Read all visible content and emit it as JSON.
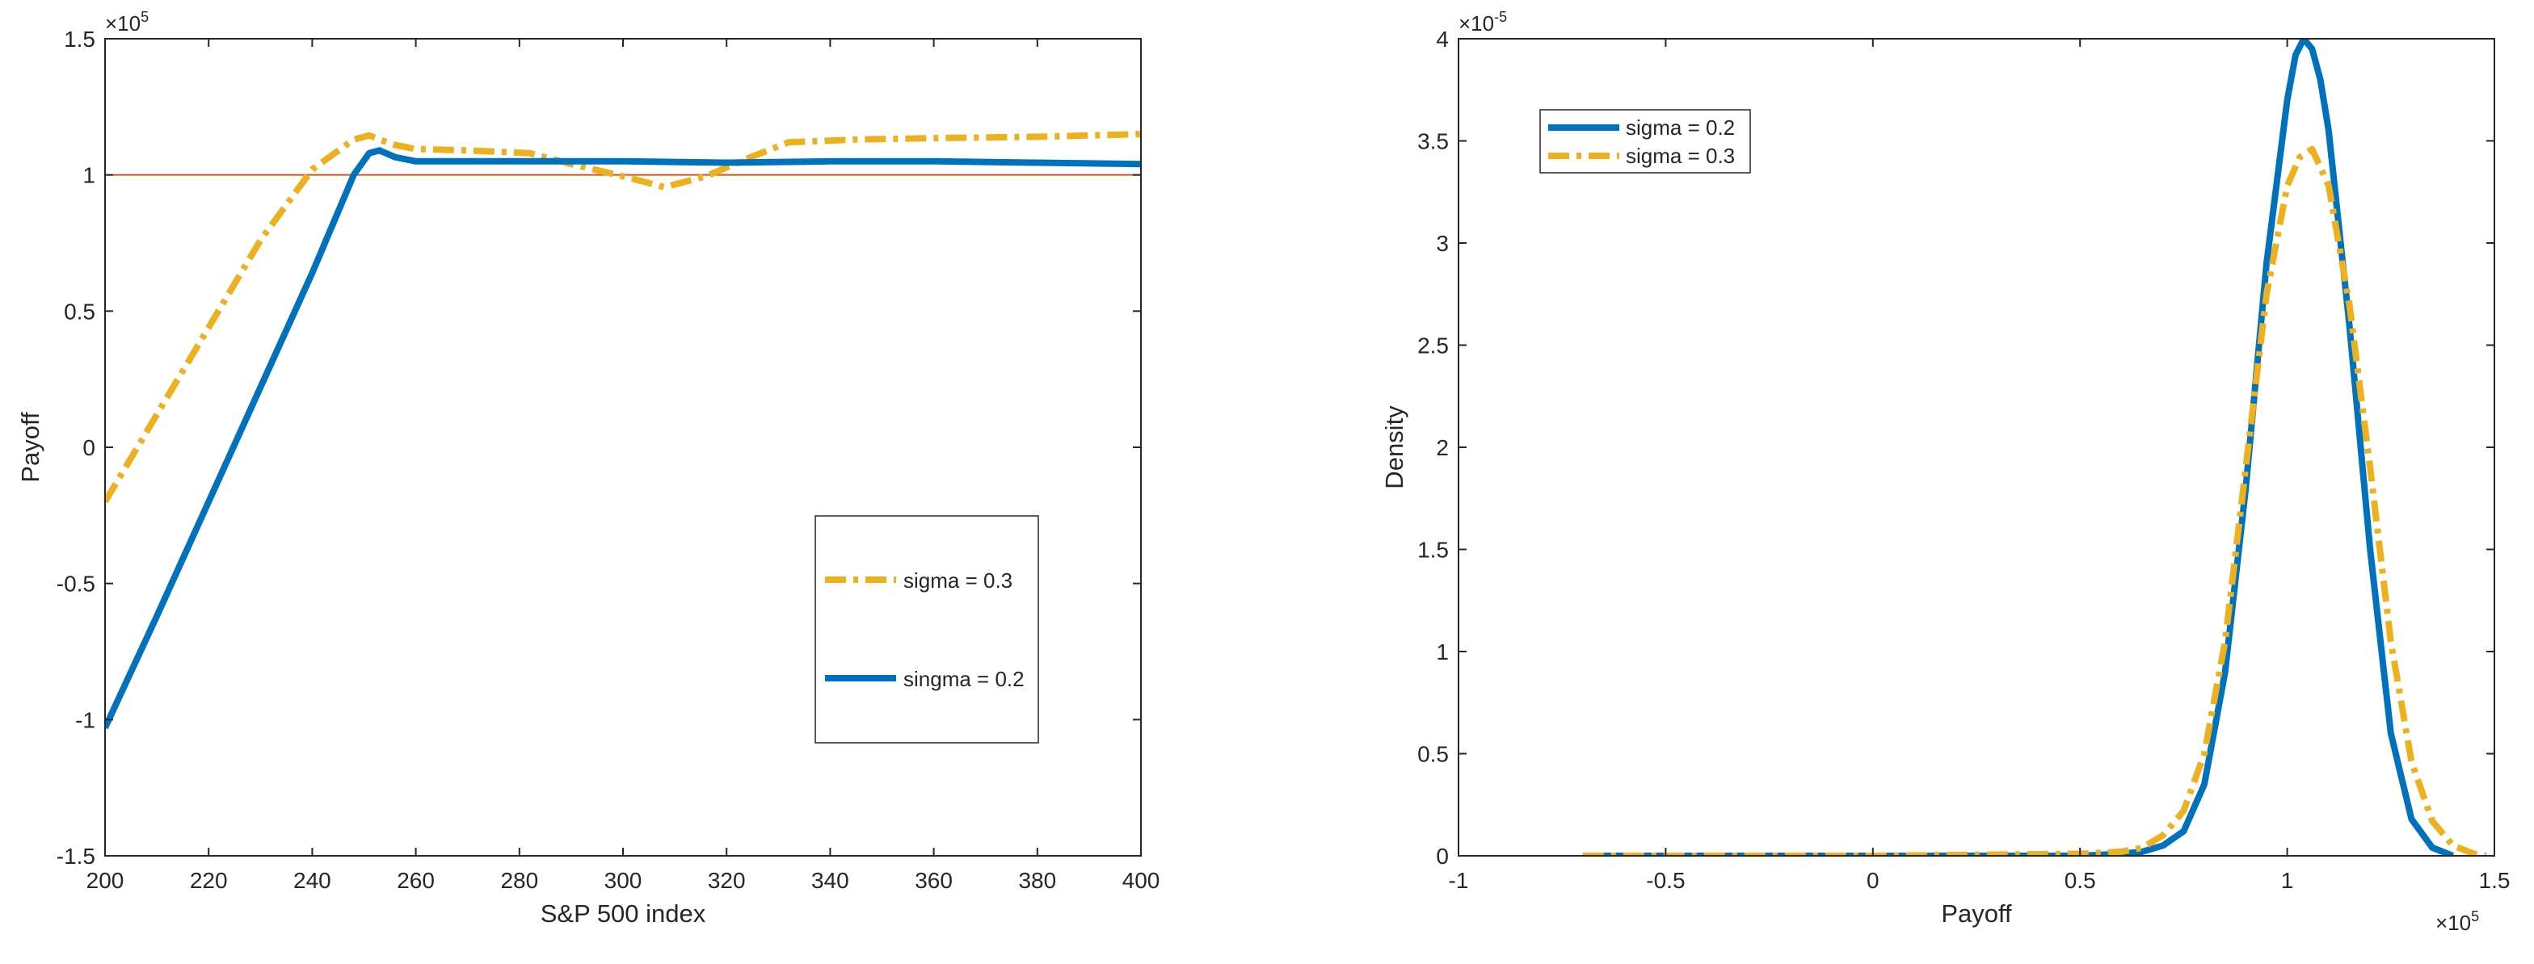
{
  "chart_data": [
    {
      "type": "line",
      "title": "",
      "xlabel": "S&P 500 index",
      "ylabel": "Payoff",
      "xlim": [
        200,
        400
      ],
      "ylim": [
        -150000,
        150000
      ],
      "x_ticks": [
        200,
        220,
        240,
        260,
        280,
        300,
        320,
        340,
        360,
        380,
        400
      ],
      "x_tick_labels": [
        "200",
        "220",
        "240",
        "260",
        "280",
        "300",
        "320",
        "340",
        "360",
        "380",
        "400"
      ],
      "y_ticks": [
        -150000,
        -100000,
        -50000,
        0,
        50000,
        100000,
        150000
      ],
      "y_tick_labels": [
        "-1.5",
        "-1",
        "-0.5",
        "0",
        "0.5",
        "1",
        "1.5"
      ],
      "y_exponent": {
        "base": "×10",
        "power": "5"
      },
      "grid": false,
      "legend_position": "lower-right",
      "reference_line": {
        "y": 100000,
        "color": "#D95319"
      },
      "series": [
        {
          "name": "sigma = 0.3",
          "style": "dashdot",
          "color": "#EDB120",
          "x": [
            200,
            210,
            220,
            230,
            240,
            248,
            251,
            253,
            256,
            260,
            270,
            282,
            290,
            300,
            308,
            316,
            324,
            332,
            345,
            360,
            380,
            400
          ],
          "y": [
            -20000,
            12000,
            44000,
            76000,
            102000,
            113000,
            114500,
            113000,
            111000,
            109500,
            109000,
            108000,
            104000,
            99500,
            95500,
            99500,
            106000,
            112000,
            113000,
            113500,
            114000,
            115000
          ]
        },
        {
          "name": "singma = 0.2",
          "style": "solid",
          "color": "#0072BD",
          "x": [
            200,
            210,
            220,
            230,
            240,
            248,
            251,
            253,
            256,
            260,
            280,
            300,
            320,
            340,
            360,
            380,
            400
          ],
          "y": [
            -103000,
            -62000,
            -20000,
            22000,
            64000,
            100000,
            108000,
            109000,
            106500,
            105000,
            105000,
            105000,
            104500,
            105000,
            105000,
            104500,
            104000
          ]
        }
      ]
    },
    {
      "type": "line",
      "title": "",
      "xlabel": "Payoff",
      "ylabel": "Density",
      "xlim": [
        -100000,
        150000
      ],
      "ylim": [
        0,
        4e-05
      ],
      "x_ticks": [
        -100000,
        -50000,
        0,
        50000,
        100000,
        150000
      ],
      "x_tick_labels": [
        "-1",
        "-0.5",
        "0",
        "0.5",
        "1",
        "1.5"
      ],
      "x_exponent": {
        "base": "×10",
        "power": "5"
      },
      "y_ticks": [
        0,
        5e-06,
        1e-05,
        1.5e-05,
        2e-05,
        2.5e-05,
        3e-05,
        3.5e-05,
        4e-05
      ],
      "y_tick_labels": [
        "0",
        "0.5",
        "1",
        "1.5",
        "2",
        "2.5",
        "3",
        "3.5",
        "4"
      ],
      "y_exponent": {
        "base": "×10",
        "power": "-5"
      },
      "grid": false,
      "legend_position": "top-left",
      "series": [
        {
          "name": "sigma = 0.2",
          "style": "solid",
          "color": "#0072BD",
          "x": [
            -70000,
            0,
            50000,
            60000,
            65000,
            70000,
            75000,
            80000,
            85000,
            90000,
            95000,
            100000,
            102000,
            104000,
            106000,
            108000,
            110000,
            115000,
            120000,
            125000,
            130000,
            135000,
            140000
          ],
          "y": [
            0,
            0,
            0,
            1e-07,
            2e-07,
            5e-07,
            1.2e-06,
            3.5e-06,
            9e-06,
            1.8e-05,
            2.9e-05,
            3.7e-05,
            3.92e-05,
            4e-05,
            3.95e-05,
            3.8e-05,
            3.55e-05,
            2.6e-05,
            1.5e-05,
            6e-06,
            1.8e-06,
            4e-07,
            0
          ]
        },
        {
          "name": "sigma = 0.3",
          "style": "dashdot",
          "color": "#EDB120",
          "x": [
            -70000,
            0,
            50000,
            60000,
            65000,
            70000,
            75000,
            80000,
            85000,
            90000,
            95000,
            100000,
            103000,
            106000,
            110000,
            115000,
            120000,
            125000,
            130000,
            135000,
            140000,
            145000,
            148000
          ],
          "y": [
            0,
            0,
            1e-07,
            2e-07,
            4e-07,
            1e-06,
            2.2e-06,
            5e-06,
            1.05e-05,
            1.9e-05,
            2.75e-05,
            3.28e-05,
            3.42e-05,
            3.46e-05,
            3.28e-05,
            2.7e-05,
            1.9e-05,
            1.05e-05,
            4.6e-06,
            1.7e-06,
            5e-07,
            1e-07,
            0
          ]
        }
      ]
    }
  ]
}
